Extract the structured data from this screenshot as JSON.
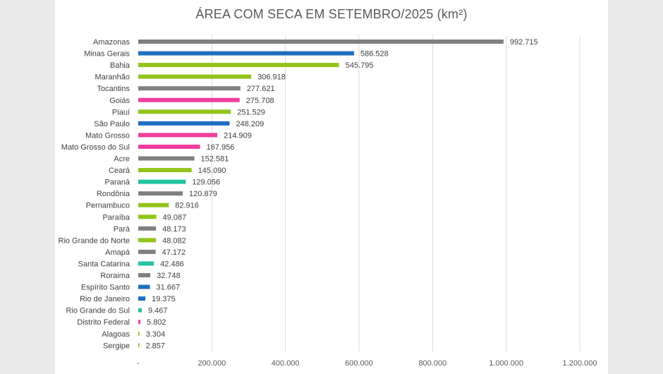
{
  "chart_data": {
    "type": "bar",
    "orientation": "horizontal",
    "title": "ÁREA COM SECA EM SETEMBRO/2025 (km²)",
    "xlabel": "",
    "ylabel": "",
    "xlim": [
      0,
      1200000
    ],
    "grid": true,
    "x_ticks": [
      {
        "value": 0,
        "label": "-"
      },
      {
        "value": 200000,
        "label": "200.000"
      },
      {
        "value": 400000,
        "label": "400.000"
      },
      {
        "value": 600000,
        "label": "600.000"
      },
      {
        "value": 800000,
        "label": "800.000"
      },
      {
        "value": 1000000,
        "label": "1.000.000"
      },
      {
        "value": 1200000,
        "label": "1.200.000"
      }
    ],
    "bars": [
      {
        "category": "Amazonas",
        "value": 992715,
        "label": "992.715",
        "color": "#808080"
      },
      {
        "category": "Minas Gerais",
        "value": 586528,
        "label": "586.528",
        "color": "#1f6fc0"
      },
      {
        "category": "Bahia",
        "value": 545795,
        "label": "545.795",
        "color": "#92c41c"
      },
      {
        "category": "Maranhão",
        "value": 306918,
        "label": "306.918",
        "color": "#92c41c"
      },
      {
        "category": "Tocantins",
        "value": 277621,
        "label": "277.621",
        "color": "#808080"
      },
      {
        "category": "Goiás",
        "value": 275708,
        "label": "275.708",
        "color": "#ef3f9d"
      },
      {
        "category": "Piauí",
        "value": 251529,
        "label": "251.529",
        "color": "#92c41c"
      },
      {
        "category": "São Paulo",
        "value": 248209,
        "label": "248.209",
        "color": "#1f6fc0"
      },
      {
        "category": "Mato Grosso",
        "value": 214909,
        "label": "214.909",
        "color": "#ef3f9d"
      },
      {
        "category": "Mato Grosso do Sul",
        "value": 167956,
        "label": "167.956",
        "color": "#ef3f9d"
      },
      {
        "category": "Acre",
        "value": 152581,
        "label": "152.581",
        "color": "#808080"
      },
      {
        "category": "Ceará",
        "value": 145090,
        "label": "145.090",
        "color": "#92c41c"
      },
      {
        "category": "Paraná",
        "value": 129056,
        "label": "129.056",
        "color": "#23c2a1"
      },
      {
        "category": "Rondônia",
        "value": 120879,
        "label": "120.879",
        "color": "#808080"
      },
      {
        "category": "Pernambuco",
        "value": 82916,
        "label": "82.916",
        "color": "#92c41c"
      },
      {
        "category": "Paraíba",
        "value": 49087,
        "label": "49.087",
        "color": "#92c41c"
      },
      {
        "category": "Pará",
        "value": 48173,
        "label": "48.173",
        "color": "#808080"
      },
      {
        "category": "Rio Grande do Norte",
        "value": 48082,
        "label": "48.082",
        "color": "#92c41c"
      },
      {
        "category": "Amapá",
        "value": 47172,
        "label": "47.172",
        "color": "#808080"
      },
      {
        "category": "Santa Catarina",
        "value": 42486,
        "label": "42.486",
        "color": "#23c2a1"
      },
      {
        "category": "Roraima",
        "value": 32748,
        "label": "32.748",
        "color": "#808080"
      },
      {
        "category": "Espírito Santo",
        "value": 31667,
        "label": "31.667",
        "color": "#1f6fc0"
      },
      {
        "category": "Rio de Janeiro",
        "value": 19375,
        "label": "19.375",
        "color": "#1f6fc0"
      },
      {
        "category": "Rio Grande do Sul",
        "value": 9467,
        "label": "9.467",
        "color": "#23c2a1"
      },
      {
        "category": "Distrito Federal",
        "value": 5802,
        "label": "5.802",
        "color": "#ef3f9d"
      },
      {
        "category": "Alagoas",
        "value": 3304,
        "label": "3.304",
        "color": "#92c41c"
      },
      {
        "category": "Sergipe",
        "value": 2857,
        "label": "2.857",
        "color": "#92c41c"
      }
    ]
  }
}
